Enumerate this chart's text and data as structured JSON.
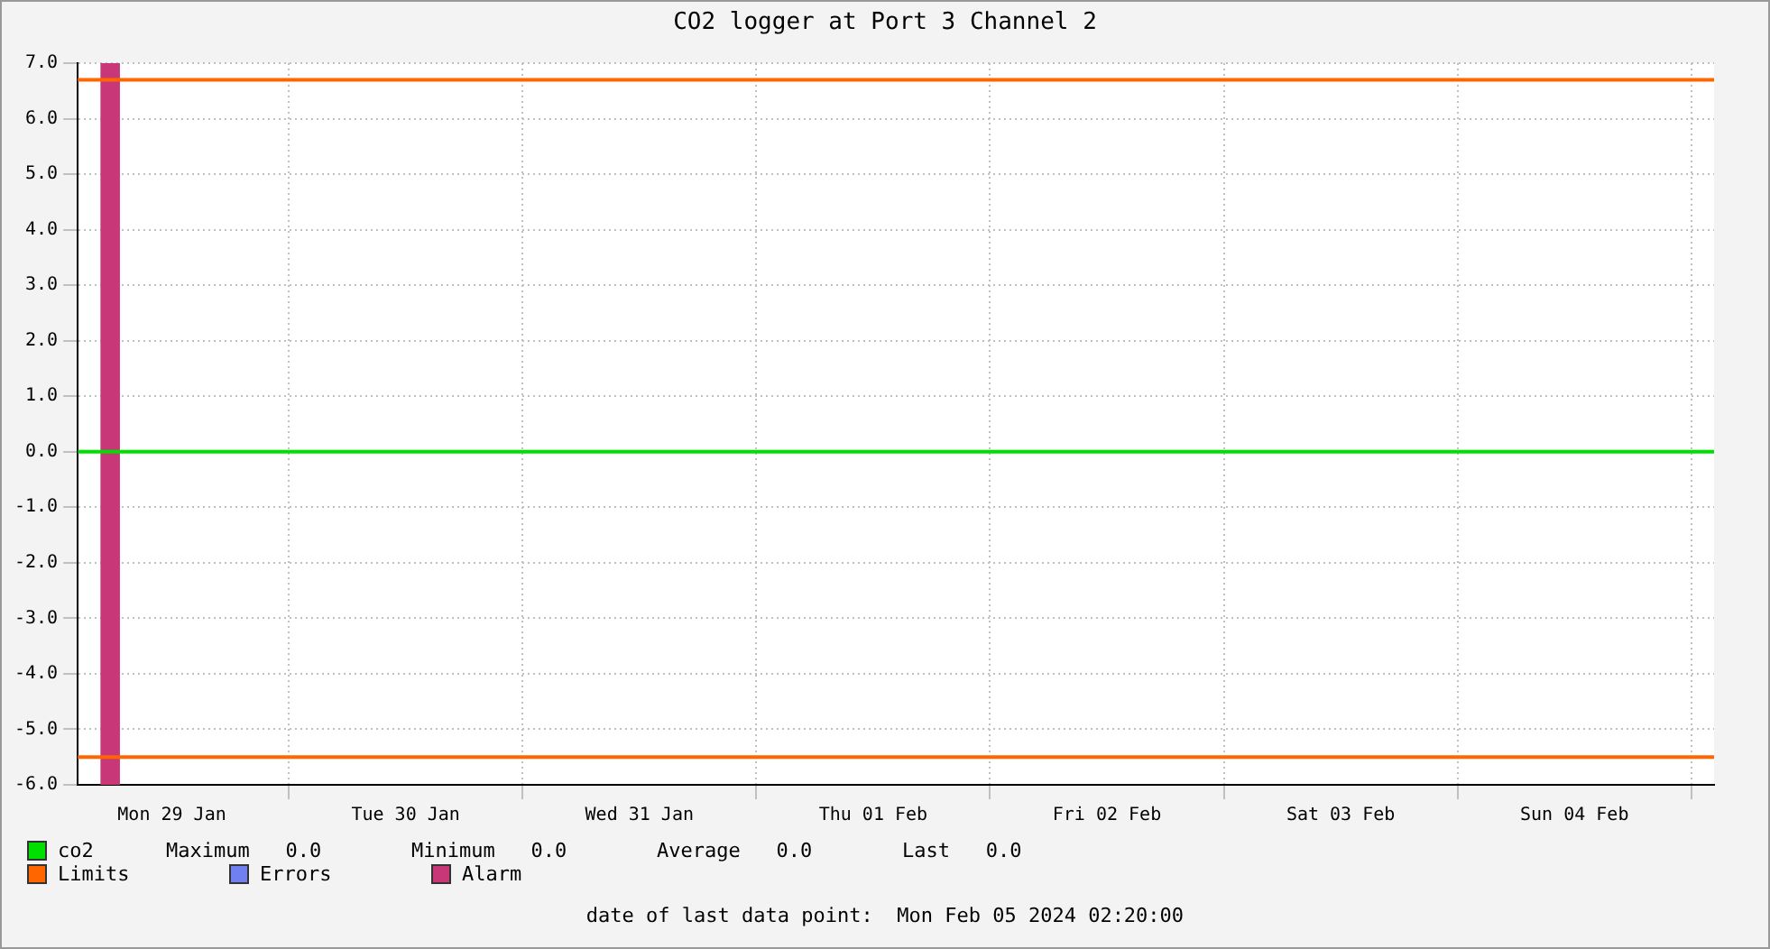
{
  "chart_data": {
    "type": "line",
    "title": "CO2 logger at Port 3 Channel 2",
    "series": [
      {
        "name": "co2",
        "color": "#00e000",
        "x": [
          "2024-01-29T02:20",
          "2024-02-05T02:20"
        ],
        "values": [
          0,
          0
        ]
      },
      {
        "name": "Errors",
        "color": "#7080f0"
      }
    ],
    "xlim": [
      "2024-01-29T02:20",
      "2024-02-05T02:20"
    ],
    "xticks": [
      {
        "value": "2024-01-29T12:00",
        "label": "Mon 29 Jan"
      },
      {
        "value": "2024-01-30T00:00",
        "label": null
      },
      {
        "value": "2024-01-30T12:00",
        "label": "Tue 30 Jan"
      },
      {
        "value": "2024-01-31T00:00",
        "label": null
      },
      {
        "value": "2024-01-31T12:00",
        "label": "Wed 31 Jan"
      },
      {
        "value": "2024-02-01T00:00",
        "label": null
      },
      {
        "value": "2024-02-01T12:00",
        "label": "Thu 01 Feb"
      },
      {
        "value": "2024-02-02T00:00",
        "label": null
      },
      {
        "value": "2024-02-02T12:00",
        "label": "Fri 02 Feb"
      },
      {
        "value": "2024-02-03T00:00",
        "label": null
      },
      {
        "value": "2024-02-03T12:00",
        "label": "Sat 03 Feb"
      },
      {
        "value": "2024-02-04T00:00",
        "label": null
      },
      {
        "value": "2024-02-04T12:00",
        "label": "Sun 04 Feb"
      },
      {
        "value": "2024-02-05T00:00",
        "label": null
      }
    ],
    "ylim": [
      -6,
      7
    ],
    "yticks": [
      {
        "value": -6,
        "label": "-6.0"
      },
      {
        "value": -5,
        "label": "-5.0"
      },
      {
        "value": -4,
        "label": "-4.0"
      },
      {
        "value": -3,
        "label": "-3.0"
      },
      {
        "value": -2,
        "label": "-2.0"
      },
      {
        "value": -1,
        "label": "-1.0"
      },
      {
        "value": 0,
        "label": "0.0"
      },
      {
        "value": 1,
        "label": "1.0"
      },
      {
        "value": 2,
        "label": "2.0"
      },
      {
        "value": 3,
        "label": "3.0"
      },
      {
        "value": 4,
        "label": "4.0"
      },
      {
        "value": 5,
        "label": "5.0"
      },
      {
        "value": 6,
        "label": "6.0"
      },
      {
        "value": 7,
        "label": "7.0"
      }
    ],
    "grid": true,
    "legend": "bottom",
    "marker": "none",
    "line_style": "solid",
    "ref_lines": [
      {
        "axis": "y",
        "value": 6.7,
        "label": "Limits",
        "color": "#ff6600"
      },
      {
        "axis": "y",
        "value": -5.5,
        "color": "#ff6600"
      }
    ],
    "bands": [
      {
        "axis": "x",
        "from": "2024-01-29T04:40",
        "to": "2024-01-29T06:40",
        "label": "Alarm",
        "color": "#c83878"
      }
    ],
    "annotations": [
      "Maximum   0.0",
      "Minimum   0.0",
      "Average   0.0",
      "Last   0.0",
      "date of last data point:  Mon Feb 05 2024 02:20:00"
    ]
  }
}
